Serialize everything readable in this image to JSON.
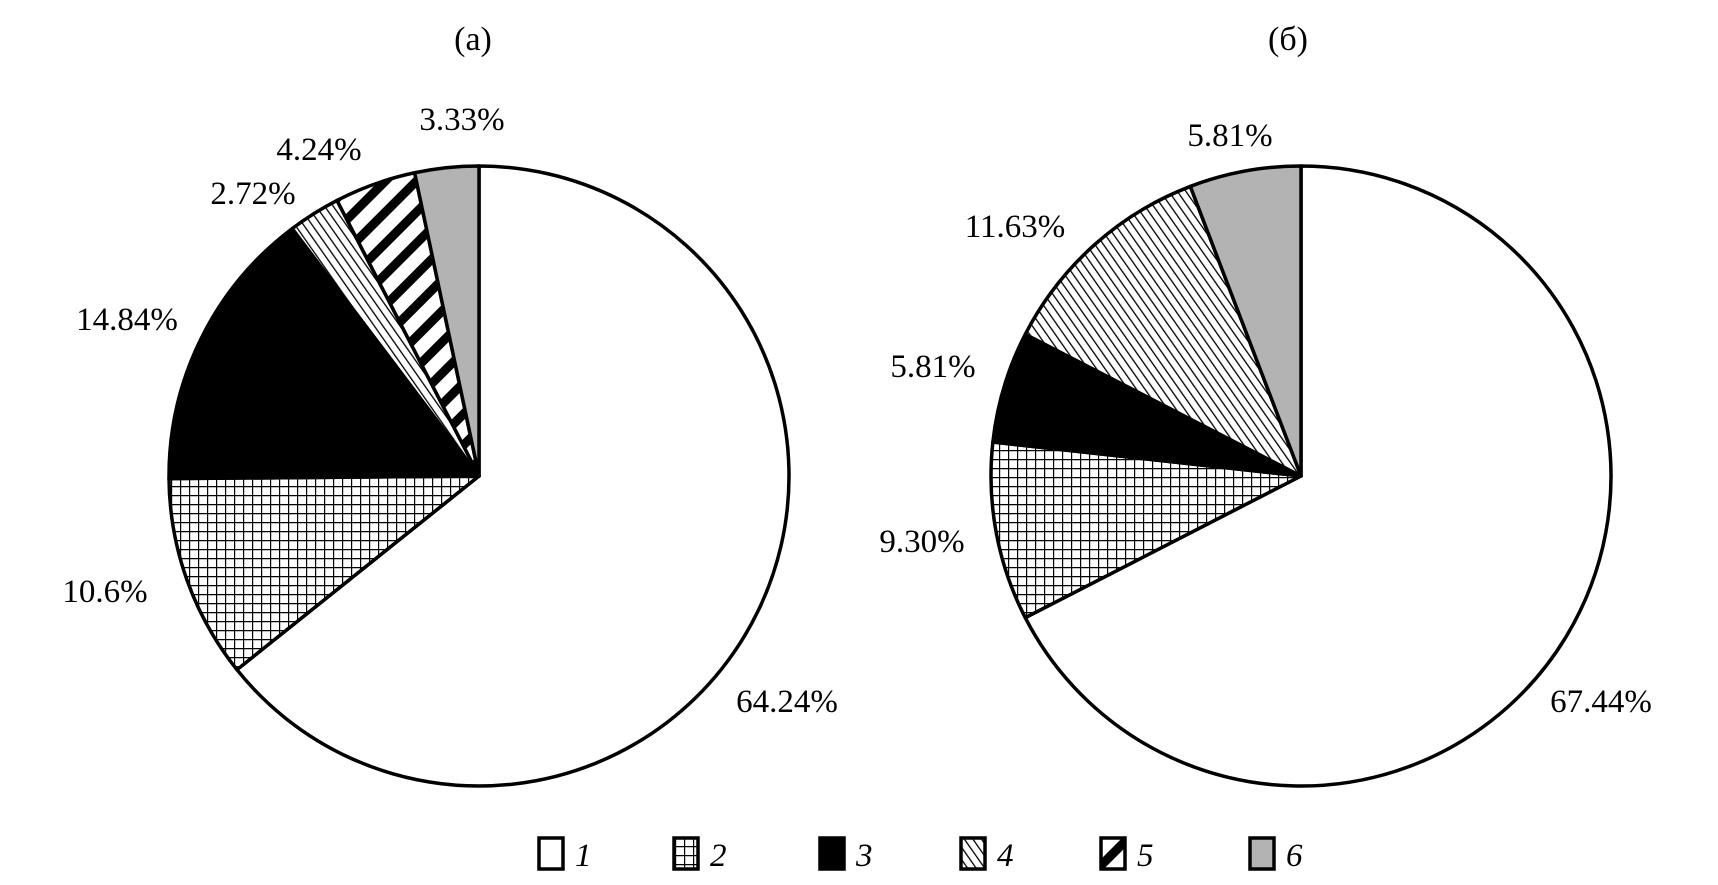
{
  "chart_data": [
    {
      "type": "pie",
      "title": "(а)",
      "start": "12 o'clock, clockwise",
      "categories": [
        "1",
        "2",
        "3",
        "4",
        "5",
        "6"
      ],
      "values": [
        64.24,
        10.6,
        14.84,
        2.72,
        4.24,
        3.33
      ],
      "labels": [
        "64.24%",
        "10.6%",
        "14.84%",
        "2.72%",
        "4.24%",
        "3.33%"
      ]
    },
    {
      "type": "pie",
      "title": "(б)",
      "start": "12 o'clock, clockwise",
      "categories": [
        "1",
        "2",
        "3",
        "4",
        "6"
      ],
      "values": [
        67.44,
        9.3,
        5.81,
        11.63,
        5.81
      ],
      "labels": [
        "67.44%",
        "9.30%",
        "5.81%",
        "11.63%",
        "5.81%"
      ]
    }
  ],
  "legend": {
    "placement": "bottom-center",
    "items": [
      {
        "label": "1",
        "fill": "white"
      },
      {
        "label": "2",
        "fill": "crosshatch-grid"
      },
      {
        "label": "3",
        "fill": "black"
      },
      {
        "label": "4",
        "fill": "fine-diagonal-hatch"
      },
      {
        "label": "5",
        "fill": "wide-backslash-stripes"
      },
      {
        "label": "6",
        "fill": "gray"
      }
    ]
  },
  "colors": {
    "stroke": "#000000",
    "black": "#000000",
    "gray": "#b3b3b3",
    "white": "#ffffff"
  }
}
